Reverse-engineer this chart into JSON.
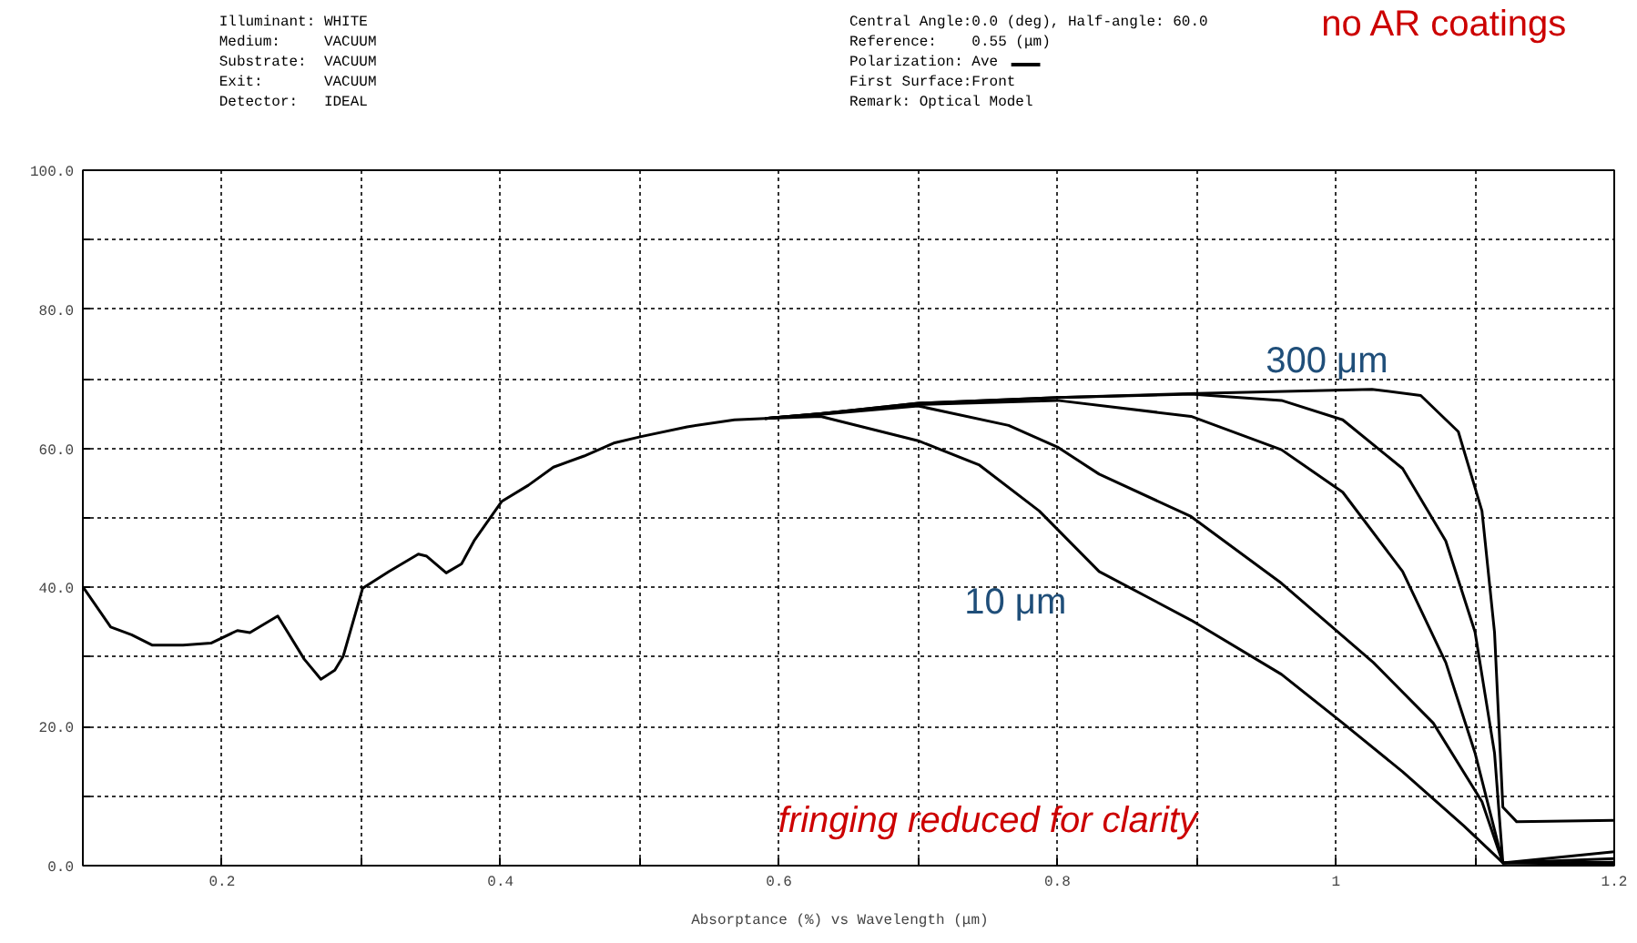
{
  "chart_data": {
    "type": "line",
    "xlabel": "Absorptance (%)  vs  Wavelength (μm)",
    "xlim": [
      0.1,
      1.2
    ],
    "ylim": [
      0,
      100
    ],
    "xticks": [
      {
        "value": 0.1,
        "label": null
      },
      0.2,
      {
        "value": 0.3,
        "label": null
      },
      0.4,
      {
        "value": 0.5,
        "label": null
      },
      0.6,
      {
        "value": 0.7,
        "label": null
      },
      0.8,
      {
        "value": 0.9,
        "label": null
      },
      1,
      {
        "value": 1.1,
        "label": null
      },
      1.2
    ],
    "yticks": [
      {
        "value": 0,
        "label": "0.0"
      },
      {
        "value": 10,
        "label": null
      },
      {
        "value": 20,
        "label": "20.0"
      },
      {
        "value": 30,
        "label": null
      },
      {
        "value": 40,
        "label": "40.0"
      },
      {
        "value": 50,
        "label": null
      },
      {
        "value": 60,
        "label": "60.0"
      },
      {
        "value": 70,
        "label": null
      },
      {
        "value": 80,
        "label": "80.0"
      },
      {
        "value": 90,
        "label": null
      },
      {
        "value": 100,
        "label": "100.0"
      }
    ],
    "grid": true,
    "line_style": "solid",
    "marker": "none",
    "series": [
      {
        "color": "#000000",
        "x": [
          0.1,
          0.12,
          0.135,
          0.15,
          0.172,
          0.192,
          0.211,
          0.22,
          0.24,
          0.259,
          0.271,
          0.281,
          0.287,
          0.301,
          0.32,
          0.341,
          0.347,
          0.361,
          0.372,
          0.381,
          0.401,
          0.42,
          0.438,
          0.46,
          0.482,
          0.501,
          0.534,
          0.568,
          0.59,
          0.63,
          0.7,
          0.744,
          0.787,
          0.83,
          0.896,
          0.961,
          1.005,
          1.048,
          1.092,
          1.12,
          1.2
        ],
        "values": [
          40.1,
          34.3,
          33.2,
          31.7,
          31.7,
          32.0,
          33.8,
          33.5,
          35.9,
          29.7,
          26.8,
          28.1,
          30.1,
          39.9,
          42.3,
          44.8,
          44.5,
          42.1,
          43.4,
          46.7,
          52.4,
          54.7,
          57.3,
          58.9,
          60.8,
          61.7,
          63.1,
          64.1,
          64.3,
          64.6,
          61.1,
          57.6,
          51.0,
          42.3,
          35.3,
          27.5,
          20.5,
          13.5,
          5.7,
          0.4,
          0.2
        ]
      },
      {
        "color": "#000000",
        "x": [
          0.59,
          0.63,
          0.7,
          0.765,
          0.8,
          0.83,
          0.896,
          0.961,
          1.027,
          1.07,
          1.105,
          1.12,
          1.2
        ],
        "values": [
          64.3,
          64.9,
          66.1,
          63.3,
          60.2,
          56.3,
          50.2,
          40.6,
          29.2,
          20.5,
          9.2,
          0.4,
          0.5
        ]
      },
      {
        "color": "#000000",
        "x": [
          0.59,
          0.63,
          0.7,
          0.8,
          0.896,
          0.961,
          1.005,
          1.048,
          1.079,
          1.1,
          1.12,
          1.2
        ],
        "values": [
          64.3,
          65.0,
          66.3,
          66.9,
          64.6,
          59.8,
          53.7,
          42.3,
          29.2,
          16.2,
          0.4,
          1.0
        ]
      },
      {
        "color": "#000000",
        "x": [
          0.59,
          0.63,
          0.7,
          0.8,
          0.896,
          0.961,
          1.005,
          1.048,
          1.079,
          1.1,
          1.114,
          1.12,
          1.2
        ],
        "values": [
          64.3,
          65.0,
          66.5,
          67.3,
          67.8,
          66.9,
          64.1,
          57.1,
          46.7,
          33.6,
          16.2,
          0.4,
          2.0
        ]
      },
      {
        "color": "#000000",
        "x": [
          0.59,
          0.63,
          0.7,
          0.8,
          0.9,
          1.026,
          1.061,
          1.088,
          1.105,
          1.114,
          1.12,
          1.13,
          1.2
        ],
        "values": [
          64.3,
          65.0,
          66.5,
          67.3,
          67.9,
          68.5,
          67.6,
          62.4,
          51.0,
          33.6,
          8.4,
          6.3,
          6.5
        ]
      }
    ],
    "annotations": [
      "Illuminant: WHITE",
      "Medium:     VACUUM",
      "Substrate:  VACUUM",
      "Exit:       VACUUM",
      "Detector:   IDEAL",
      "Central Angle:0.0 (deg), Half-angle: 60.0",
      "Reference:    0.55 (μm)",
      "Polarization: Ave",
      "First Surface:Front",
      "Remark: Optical Model",
      "no AR coatings",
      "fringing reduced for clarity",
      {
        "text": "10 μm",
        "x": 0.83,
        "y": 42.3
      },
      {
        "text": "300 μm",
        "x": 1.061,
        "y": 67.6
      }
    ]
  }
}
